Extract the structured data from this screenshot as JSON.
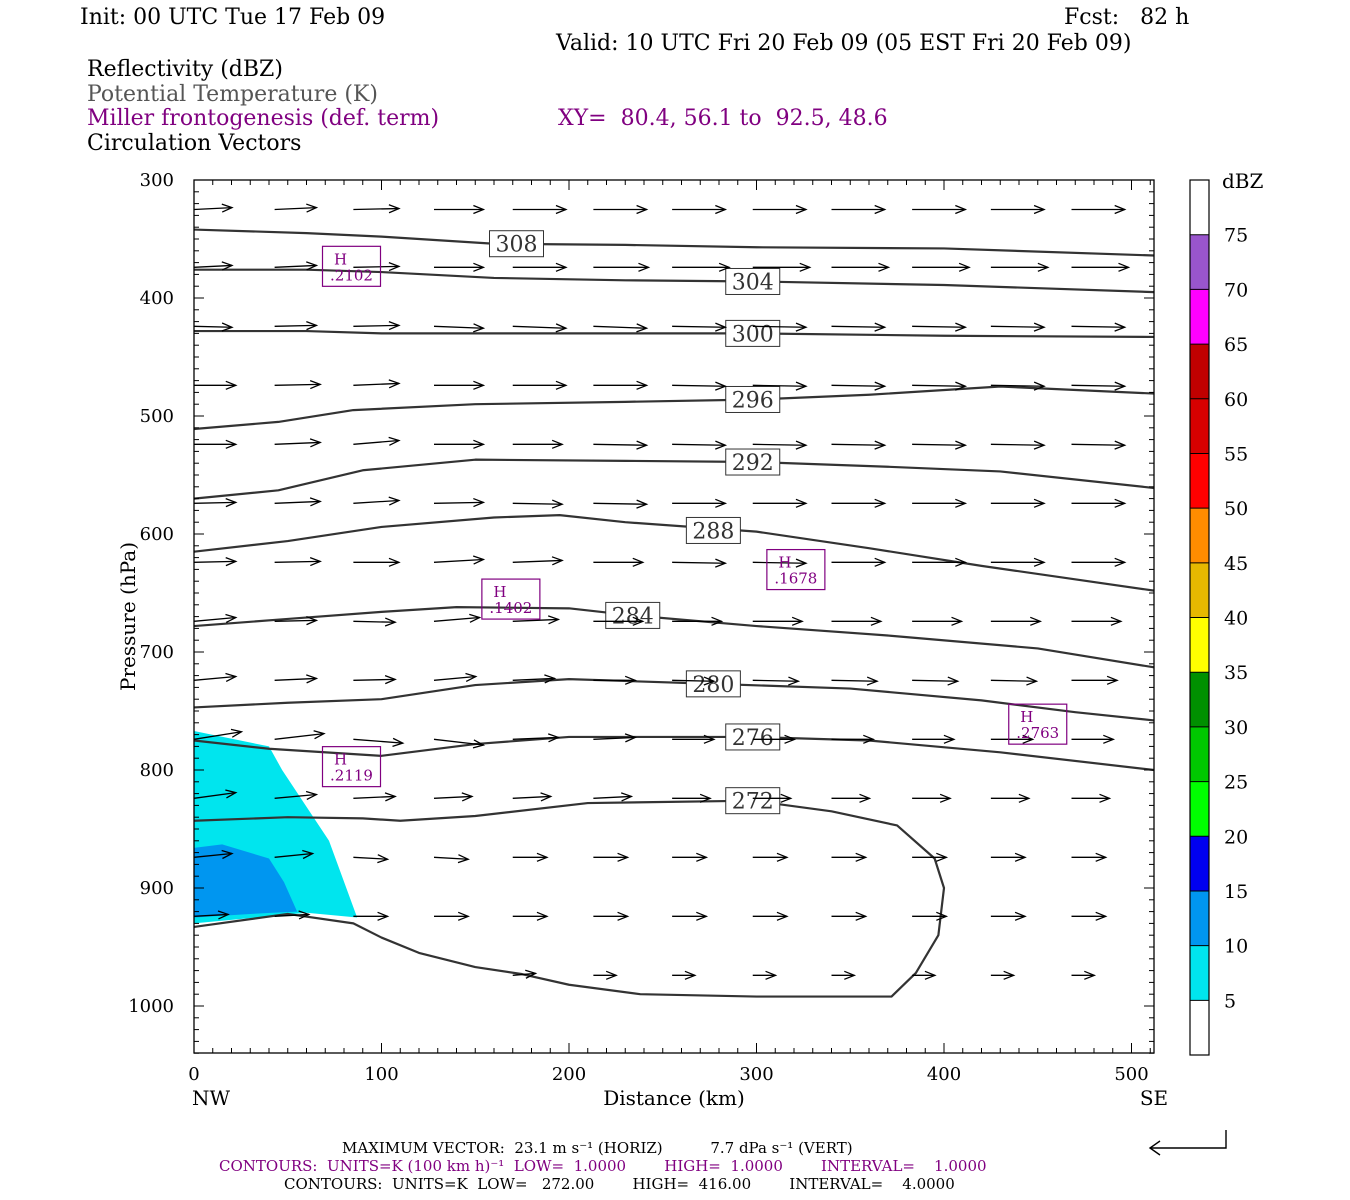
{
  "header": {
    "init": "Init: 00 UTC Tue 17 Feb 09",
    "fcst": "Fcst:   82 h",
    "valid": "Valid: 10 UTC Fri 20 Feb 09 (05 EST Fri 20 Feb 09)",
    "field1": "Reflectivity (dBZ)",
    "field2": "Potential Temperature (K)",
    "field3": "Miller frontogenesis (def. term)",
    "xy": "XY=  80.4, 56.1 to  92.5, 48.6",
    "field4": "Circulation Vectors"
  },
  "colors": {
    "field2": "#555555",
    "field3": "#800080",
    "light_cyan": "#00e5ee",
    "medium_blue": "#0096f0",
    "theta_contour": "#333333"
  },
  "footer": {
    "max_vector": "MAXIMUM VECTOR:  23.1 m s⁻¹ (HORIZ)          7.7 dPa s⁻¹ (VERT)",
    "contours_purple": "CONTOURS:  UNITS=K (100 km h)⁻¹  LOW=  1.0000        HIGH=  1.0000        INTERVAL=    1.0000",
    "contours_black": "CONTOURS:  UNITS=K  LOW=   272.00        HIGH=  416.00        INTERVAL=    4.0000"
  },
  "chart_data": {
    "type": "cross-section",
    "xlabel": "Distance (km)",
    "ylabel": "Pressure (hPa)",
    "xlim": [
      0,
      512
    ],
    "ylim": [
      1040,
      300
    ],
    "x_ticks": [
      0,
      100,
      200,
      300,
      400,
      500
    ],
    "y_ticks": [
      300,
      400,
      500,
      600,
      700,
      800,
      900,
      1000
    ],
    "x_end_labels": [
      "NW",
      "SE"
    ],
    "colorbar": {
      "unit": "dBZ",
      "levels": [
        5,
        10,
        15,
        20,
        25,
        30,
        35,
        40,
        45,
        50,
        55,
        60,
        65,
        70,
        75
      ],
      "colors": [
        "#ffffff",
        "#00e5ee",
        "#0096f0",
        "#0000f0",
        "#00ff00",
        "#00c800",
        "#009000",
        "#ffff00",
        "#e6b800",
        "#ff8c00",
        "#ff0000",
        "#d70000",
        "#c00000",
        "#ff00ff",
        "#9955cc",
        "#ffffff"
      ]
    },
    "reflectivity": [
      {
        "dbz": "5-10",
        "polygon": [
          [
            0,
            767
          ],
          [
            40,
            780
          ],
          [
            47,
            800
          ],
          [
            72,
            860
          ],
          [
            87,
            925
          ],
          [
            60,
            921
          ],
          [
            0,
            930
          ]
        ]
      },
      {
        "dbz": "10-15",
        "polygon": [
          [
            0,
            866
          ],
          [
            15,
            863
          ],
          [
            40,
            875
          ],
          [
            48,
            895
          ],
          [
            55,
            920
          ],
          [
            42,
            921
          ],
          [
            30,
            922
          ],
          [
            0,
            925
          ]
        ]
      }
    ],
    "theta_contours": [
      {
        "label": "308",
        "label_pos": [
          172,
          354
        ],
        "points": [
          [
            0,
            342
          ],
          [
            60,
            345
          ],
          [
            100,
            348
          ],
          [
            160,
            354
          ],
          [
            230,
            355
          ],
          [
            300,
            357
          ],
          [
            400,
            358
          ],
          [
            512,
            364
          ]
        ]
      },
      {
        "label": "304",
        "label_pos": [
          298,
          386
        ],
        "points": [
          [
            0,
            376
          ],
          [
            60,
            376
          ],
          [
            100,
            378
          ],
          [
            160,
            383
          ],
          [
            230,
            385
          ],
          [
            300,
            386
          ],
          [
            400,
            389
          ],
          [
            512,
            395
          ]
        ]
      },
      {
        "label": "300",
        "label_pos": [
          298,
          430
        ],
        "points": [
          [
            0,
            428
          ],
          [
            60,
            428
          ],
          [
            100,
            430
          ],
          [
            160,
            430
          ],
          [
            230,
            430
          ],
          [
            300,
            430
          ],
          [
            400,
            432
          ],
          [
            512,
            433
          ]
        ]
      },
      {
        "label": "296",
        "label_pos": [
          298,
          486
        ],
        "points": [
          [
            0,
            511
          ],
          [
            45,
            505
          ],
          [
            85,
            495
          ],
          [
            150,
            490
          ],
          [
            230,
            488
          ],
          [
            300,
            486
          ],
          [
            360,
            482
          ],
          [
            430,
            475
          ],
          [
            512,
            481
          ]
        ]
      },
      {
        "label": "292",
        "label_pos": [
          298,
          539
        ],
        "points": [
          [
            0,
            570
          ],
          [
            45,
            563
          ],
          [
            90,
            546
          ],
          [
            150,
            537
          ],
          [
            230,
            538
          ],
          [
            300,
            539
          ],
          [
            370,
            543
          ],
          [
            430,
            547
          ],
          [
            512,
            561
          ]
        ]
      },
      {
        "label": "288",
        "label_pos": [
          277,
          597
        ],
        "points": [
          [
            0,
            615
          ],
          [
            50,
            606
          ],
          [
            100,
            594
          ],
          [
            160,
            586
          ],
          [
            195,
            584
          ],
          [
            230,
            590
          ],
          [
            300,
            598
          ],
          [
            360,
            612
          ],
          [
            420,
            627
          ],
          [
            512,
            648
          ]
        ]
      },
      {
        "label": "284",
        "label_pos": [
          234,
          669
        ],
        "points": [
          [
            0,
            678
          ],
          [
            50,
            672
          ],
          [
            100,
            666
          ],
          [
            140,
            662
          ],
          [
            200,
            663
          ],
          [
            234,
            669
          ],
          [
            300,
            678
          ],
          [
            370,
            686
          ],
          [
            450,
            697
          ],
          [
            512,
            713
          ]
        ]
      },
      {
        "label": "280",
        "label_pos": [
          277,
          727
        ],
        "points": [
          [
            0,
            747
          ],
          [
            50,
            743
          ],
          [
            100,
            740
          ],
          [
            150,
            728
          ],
          [
            200,
            723
          ],
          [
            277,
            727
          ],
          [
            350,
            731
          ],
          [
            420,
            741
          ],
          [
            470,
            751
          ],
          [
            512,
            758
          ]
        ]
      },
      {
        "label": "276",
        "label_pos": [
          298,
          772
        ],
        "points": [
          [
            0,
            775
          ],
          [
            40,
            782
          ],
          [
            100,
            788
          ],
          [
            150,
            778
          ],
          [
            200,
            772
          ],
          [
            298,
            772
          ],
          [
            360,
            775
          ],
          [
            430,
            785
          ],
          [
            512,
            800
          ]
        ]
      },
      {
        "label": "272",
        "label_pos": [
          298,
          826
        ],
        "points": [
          [
            0,
            843
          ],
          [
            50,
            840
          ],
          [
            90,
            841
          ],
          [
            110,
            843
          ],
          [
            150,
            839
          ],
          [
            210,
            828
          ],
          [
            298,
            826
          ],
          [
            340,
            835
          ],
          [
            375,
            847
          ],
          [
            395,
            875
          ],
          [
            400,
            900
          ],
          [
            397,
            940
          ],
          [
            385,
            972
          ],
          [
            372,
            992
          ],
          [
            360,
            992
          ],
          [
            300,
            992
          ],
          [
            238,
            990
          ],
          [
            200,
            982
          ],
          [
            175,
            973
          ],
          [
            150,
            967
          ],
          [
            120,
            955
          ],
          [
            100,
            942
          ],
          [
            85,
            930
          ],
          [
            50,
            922
          ],
          [
            0,
            933
          ]
        ]
      }
    ],
    "frontogenesis_maxima": [
      {
        "label": "H",
        "value": ".2102",
        "x": 84,
        "p": 374
      },
      {
        "label": "H",
        "value": ".2119",
        "x": 84,
        "p": 798
      },
      {
        "label": "H",
        "value": ".1402",
        "x": 169,
        "p": 656
      },
      {
        "label": "H",
        "value": ".1678",
        "x": 321,
        "p": 631
      },
      {
        "label": "H",
        "value": ".2763",
        "x": 450,
        "p": 762
      }
    ],
    "vector_rows": [
      {
        "p": 325,
        "x": [
          0,
          43,
          85,
          128,
          170,
          213,
          255,
          298,
          340,
          383,
          425,
          468
        ]
      },
      {
        "p": 374,
        "x": [
          0,
          43,
          85,
          128,
          170,
          213,
          255,
          298,
          340,
          383,
          425,
          468
        ]
      },
      {
        "p": 424,
        "x": [
          0,
          43,
          85,
          128,
          170,
          213,
          255,
          298,
          340,
          383,
          425,
          468
        ]
      },
      {
        "p": 474,
        "x": [
          0,
          43,
          85,
          128,
          170,
          213,
          255,
          298,
          340,
          383,
          425,
          468
        ]
      },
      {
        "p": 524,
        "x": [
          0,
          43,
          85,
          128,
          170,
          213,
          255,
          298,
          340,
          383,
          425,
          468
        ]
      },
      {
        "p": 574,
        "x": [
          0,
          43,
          85,
          128,
          170,
          213,
          255,
          298,
          340,
          383,
          425,
          468
        ]
      },
      {
        "p": 624,
        "x": [
          0,
          43,
          85,
          128,
          170,
          213,
          255,
          298,
          340,
          383,
          425,
          468
        ]
      },
      {
        "p": 674,
        "x": [
          0,
          43,
          85,
          128,
          170,
          213,
          255,
          298,
          340,
          383,
          425,
          468
        ]
      },
      {
        "p": 724,
        "x": [
          0,
          43,
          85,
          128,
          170,
          213,
          255,
          298,
          340,
          383,
          425,
          468
        ]
      },
      {
        "p": 774,
        "x": [
          0,
          43,
          85,
          128,
          170,
          213,
          255,
          298,
          340,
          383,
          425,
          468
        ]
      },
      {
        "p": 824,
        "x": [
          0,
          43,
          85,
          128,
          170,
          213,
          255,
          298,
          340,
          383,
          425,
          468
        ]
      },
      {
        "p": 874,
        "x": [
          0,
          43,
          85,
          128,
          170,
          213,
          255,
          298,
          340,
          383,
          425,
          468
        ]
      },
      {
        "p": 924,
        "x": [
          0,
          43,
          85,
          128,
          170,
          213,
          255,
          298,
          340,
          383,
          425,
          468
        ]
      },
      {
        "p": 974,
        "x": [
          170,
          213,
          255,
          298,
          340,
          383,
          425,
          468
        ]
      }
    ],
    "vector_u": [
      [
        20,
        22,
        24,
        26,
        28,
        28,
        28,
        28,
        28,
        28,
        28,
        28
      ],
      [
        20,
        22,
        24,
        26,
        28,
        29,
        30,
        30,
        30,
        30,
        30,
        30
      ],
      [
        20,
        22,
        24,
        26,
        28,
        28,
        28,
        28,
        28,
        28,
        28,
        28
      ],
      [
        22,
        24,
        24,
        26,
        28,
        28,
        28,
        28,
        28,
        28,
        28,
        28
      ],
      [
        22,
        24,
        24,
        26,
        26,
        28,
        28,
        28,
        28,
        28,
        28,
        28
      ],
      [
        22,
        24,
        24,
        26,
        26,
        28,
        28,
        28,
        28,
        28,
        28,
        28
      ],
      [
        22,
        24,
        24,
        26,
        26,
        26,
        28,
        28,
        28,
        28,
        28,
        28
      ],
      [
        22,
        22,
        22,
        24,
        24,
        26,
        26,
        26,
        26,
        26,
        26,
        26
      ],
      [
        22,
        22,
        22,
        22,
        22,
        22,
        22,
        24,
        24,
        24,
        24,
        24
      ],
      [
        25,
        26,
        26,
        26,
        24,
        22,
        22,
        22,
        22,
        22,
        22,
        22
      ],
      [
        22,
        22,
        22,
        20,
        20,
        20,
        20,
        20,
        20,
        20,
        20,
        20
      ],
      [
        20,
        20,
        18,
        18,
        18,
        18,
        18,
        18,
        18,
        18,
        18,
        18
      ],
      [
        18,
        18,
        18,
        18,
        18,
        18,
        18,
        18,
        18,
        18,
        18,
        18
      ],
      [
        12,
        12,
        12,
        12,
        12,
        12,
        12,
        12
      ]
    ],
    "vector_w": [
      [
        1,
        1,
        0.5,
        0,
        0,
        0,
        0,
        0,
        0,
        0,
        0,
        0
      ],
      [
        1,
        1,
        0.5,
        0,
        0,
        0,
        0,
        0,
        0,
        0,
        0,
        0
      ],
      [
        -0.5,
        0.5,
        0.5,
        -1,
        -1,
        -1,
        -0.5,
        -0.5,
        -0.5,
        -0.5,
        -0.5,
        -0.5
      ],
      [
        0,
        0.5,
        1,
        0,
        0,
        0,
        -0.5,
        -0.5,
        -0.5,
        -0.5,
        -0.5,
        -0.5
      ],
      [
        0,
        1,
        2,
        0,
        0,
        -0.5,
        -0.5,
        -0.5,
        -0.5,
        -0.5,
        -0.5,
        -0.5
      ],
      [
        0.5,
        1,
        1.5,
        0.5,
        -0.5,
        -0.5,
        0,
        0,
        0,
        0,
        0,
        0
      ],
      [
        0.5,
        0.5,
        0,
        1.5,
        1,
        0,
        -0.5,
        -0.5,
        0,
        0,
        0,
        0
      ],
      [
        2,
        0.5,
        -0.5,
        2,
        1,
        0,
        0,
        0,
        0,
        0,
        0,
        0
      ],
      [
        2,
        1,
        0.5,
        2,
        1,
        0,
        -0.5,
        -0.5,
        -0.5,
        -0.5,
        -0.5,
        0
      ],
      [
        4,
        3,
        -2,
        -3,
        1,
        1,
        0,
        0,
        0,
        0,
        0,
        0
      ],
      [
        3,
        2,
        1,
        1,
        1,
        1,
        0,
        0,
        0,
        0,
        0,
        0
      ],
      [
        2,
        2,
        -1,
        -1,
        0,
        0,
        0,
        0,
        0,
        0,
        0,
        0
      ],
      [
        1,
        1,
        0,
        0,
        0,
        0,
        0,
        0,
        0,
        0,
        0,
        0
      ],
      [
        1,
        0,
        0,
        0,
        0,
        0,
        0,
        0
      ]
    ]
  }
}
